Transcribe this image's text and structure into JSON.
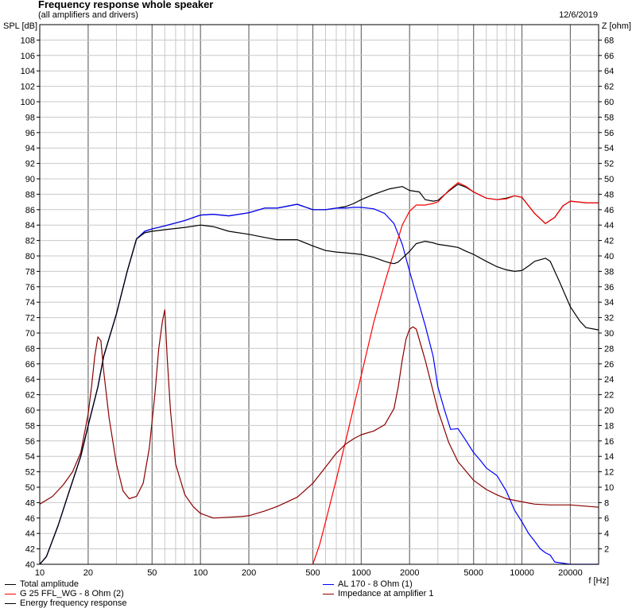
{
  "header": {
    "title": "Frequency response whole speaker",
    "subtitle": "(all amplifiers and drivers)",
    "date": "12/6/2019"
  },
  "chart_data": {
    "type": "line",
    "title": "Frequency response whole speaker",
    "subtitle": "(all amplifiers and drivers)",
    "xlabel": "f [Hz]",
    "ylabel": "SPL [dB]",
    "y2label": "Z [ohm]",
    "xscale": "log",
    "xlim": [
      10,
      30000
    ],
    "ylim": [
      40,
      110
    ],
    "y2lim": [
      0,
      70
    ],
    "grid": true,
    "x_ticks": [
      10,
      20,
      50,
      100,
      200,
      500,
      1000,
      2000,
      5000,
      10000,
      20000
    ],
    "x_tick_labels": [
      "10",
      "20",
      "50",
      "100",
      "200",
      "500",
      "1000",
      "2000",
      "5000",
      "10000",
      "20000"
    ],
    "y_ticks": [
      40,
      42,
      44,
      46,
      48,
      50,
      52,
      54,
      56,
      58,
      60,
      62,
      64,
      66,
      68,
      70,
      72,
      74,
      76,
      78,
      80,
      82,
      84,
      86,
      88,
      90,
      92,
      94,
      96,
      98,
      100,
      102,
      104,
      106,
      108
    ],
    "y2_ticks": [
      2,
      4,
      6,
      8,
      10,
      12,
      14,
      16,
      18,
      20,
      22,
      24,
      26,
      28,
      30,
      32,
      34,
      36,
      38,
      40,
      42,
      44,
      46,
      48,
      50,
      52,
      54,
      56,
      58,
      60,
      62,
      64,
      66,
      68
    ],
    "legend_position": "bottom",
    "series": [
      {
        "name": "Total amplitude",
        "color": "#000000",
        "x": [
          10,
          11,
          13,
          15,
          18,
          20,
          23,
          25,
          30,
          35,
          40,
          45,
          50,
          60,
          80,
          100,
          120,
          150,
          200,
          250,
          300,
          400,
          500,
          600,
          700,
          800,
          900,
          1000,
          1200,
          1500,
          1800,
          2000,
          2300,
          2500,
          2800,
          3000,
          3500,
          4000,
          4500,
          5000,
          6000,
          7000,
          8000,
          9000,
          10000,
          12000,
          14000,
          16000,
          18000,
          20000,
          25000,
          30000
        ],
        "y": [
          40,
          41,
          45,
          49,
          54,
          58,
          63,
          67,
          72.5,
          78,
          82.2,
          83.2,
          83.5,
          83.9,
          84.6,
          85.3,
          85.4,
          85.2,
          85.6,
          86.2,
          86.2,
          86.7,
          86,
          86,
          86.2,
          86.4,
          86.8,
          87.3,
          88,
          88.7,
          89,
          88.5,
          88.3,
          87.3,
          87.1,
          87.2,
          88.4,
          89.3,
          88.9,
          88.3,
          87.5,
          87.3,
          87.5,
          87.8,
          87.6,
          85.5,
          84.2,
          85,
          86.5,
          87.1,
          86.9,
          86.9
        ]
      },
      {
        "name": "AL 170 - 8 Ohm (1)",
        "color": "#0000ff",
        "x": [
          10,
          11,
          13,
          15,
          18,
          20,
          23,
          25,
          30,
          35,
          40,
          45,
          50,
          60,
          80,
          100,
          120,
          150,
          200,
          250,
          300,
          400,
          500,
          600,
          700,
          800,
          900,
          1000,
          1200,
          1400,
          1600,
          1800,
          2000,
          2200,
          2500,
          2800,
          3000,
          3300,
          3600,
          4000,
          4500,
          5000,
          5500,
          6000,
          7000,
          8000,
          9000,
          10000,
          11000,
          12000,
          13000,
          14000,
          15000,
          16000,
          20000,
          30000
        ],
        "y": [
          40,
          41,
          45,
          49,
          54,
          58,
          63,
          67,
          72.5,
          78,
          82.2,
          83.2,
          83.5,
          83.9,
          84.6,
          85.3,
          85.4,
          85.2,
          85.6,
          86.2,
          86.2,
          86.7,
          86,
          86,
          86.2,
          86.2,
          86.3,
          86.3,
          86.1,
          85.5,
          84.2,
          81.5,
          78,
          75,
          71,
          67,
          63,
          60,
          57.5,
          57.6,
          56,
          54.5,
          53.5,
          52.5,
          51.5,
          49.5,
          47,
          45.5,
          44,
          43,
          42,
          41.5,
          41.2,
          40.3,
          40,
          40
        ]
      },
      {
        "name": "G 25 FFL_WG - 8 Ohm (2)",
        "color": "#ff0000",
        "x": [
          500,
          550,
          600,
          700,
          800,
          900,
          1000,
          1200,
          1400,
          1600,
          1800,
          2000,
          2200,
          2500,
          2800,
          3000,
          3500,
          4000,
          4500,
          5000,
          6000,
          7000,
          8000,
          9000,
          10000,
          12000,
          14000,
          16000,
          18000,
          20000,
          25000,
          30000
        ],
        "y": [
          40,
          42.5,
          45.5,
          51,
          56,
          60.5,
          64.5,
          71.5,
          76.5,
          80.5,
          84,
          85.8,
          86.6,
          86.6,
          86.8,
          87,
          88.5,
          89.5,
          89,
          88.3,
          87.5,
          87.3,
          87.4,
          87.8,
          87.6,
          85.5,
          84.2,
          85,
          86.5,
          87.1,
          86.9,
          86.9
        ]
      },
      {
        "name": "Impedance at amplifier 1",
        "color": "#8b0000",
        "axis": "right",
        "x": [
          10,
          12,
          14,
          16,
          18,
          20,
          21,
          22,
          23,
          24,
          25,
          27,
          30,
          33,
          36,
          40,
          44,
          48,
          52,
          55,
          58,
          60,
          62,
          65,
          70,
          80,
          90,
          100,
          120,
          150,
          180,
          200,
          250,
          300,
          400,
          500,
          600,
          700,
          800,
          900,
          1000,
          1200,
          1400,
          1600,
          1700,
          1800,
          1900,
          2000,
          2100,
          2200,
          2500,
          3000,
          3500,
          4000,
          5000,
          6000,
          7000,
          8000,
          10000,
          12000,
          15000,
          20000,
          30000
        ],
        "y": [
          7.8,
          8.8,
          10.3,
          12,
          14.5,
          19.5,
          23,
          27,
          29.5,
          29,
          25,
          19,
          13,
          9.5,
          8.5,
          8.8,
          10.5,
          15,
          22,
          28,
          31.5,
          33,
          27,
          20,
          13,
          9,
          7.5,
          6.6,
          6,
          6.1,
          6.2,
          6.3,
          6.9,
          7.5,
          8.7,
          10.5,
          12.6,
          14.4,
          15.6,
          16.3,
          16.8,
          17.3,
          18.1,
          20.2,
          23,
          26.5,
          29.2,
          30.5,
          30.8,
          30.5,
          26.5,
          20,
          15.8,
          13.3,
          10.9,
          9.7,
          9,
          8.5,
          8.1,
          7.8,
          7.7,
          7.7,
          7.4
        ]
      },
      {
        "name": "Energy frequency response",
        "color": "#000000",
        "x": [
          10,
          11,
          13,
          15,
          18,
          20,
          23,
          25,
          30,
          35,
          40,
          45,
          50,
          60,
          80,
          100,
          120,
          150,
          200,
          250,
          300,
          400,
          500,
          600,
          700,
          800,
          900,
          1000,
          1200,
          1400,
          1500,
          1600,
          1700,
          1800,
          2000,
          2200,
          2500,
          2800,
          3000,
          3500,
          4000,
          4500,
          5000,
          6000,
          7000,
          8000,
          9000,
          10000,
          11000,
          12000,
          14000,
          15000,
          17000,
          20000,
          23000,
          25000,
          30000
        ],
        "y": [
          40,
          41,
          45,
          49,
          54,
          58,
          63,
          67,
          72.5,
          78,
          82.2,
          83,
          83.2,
          83.4,
          83.7,
          84,
          83.8,
          83.2,
          82.8,
          82.4,
          82.1,
          82.1,
          81.3,
          80.7,
          80.5,
          80.4,
          80.3,
          80.2,
          79.8,
          79.3,
          79.1,
          79,
          79.2,
          79.7,
          80.6,
          81.6,
          81.9,
          81.7,
          81.5,
          81.3,
          81.1,
          80.6,
          80.2,
          79.3,
          78.6,
          78.2,
          78,
          78.1,
          78.7,
          79.3,
          79.7,
          79.3,
          76.8,
          73.4,
          71.5,
          70.7,
          70.4
        ]
      }
    ]
  },
  "legend": [
    {
      "label": "Total amplitude",
      "color": "#000000"
    },
    {
      "label": "AL 170 - 8 Ohm (1)",
      "color": "#0000ff"
    },
    {
      "label": "G 25 FFL_WG - 8 Ohm (2)",
      "color": "#ff0000"
    },
    {
      "label": "Impedance at amplifier 1",
      "color": "#8b0000"
    },
    {
      "label": "Energy frequency response",
      "color": "#000000"
    }
  ]
}
